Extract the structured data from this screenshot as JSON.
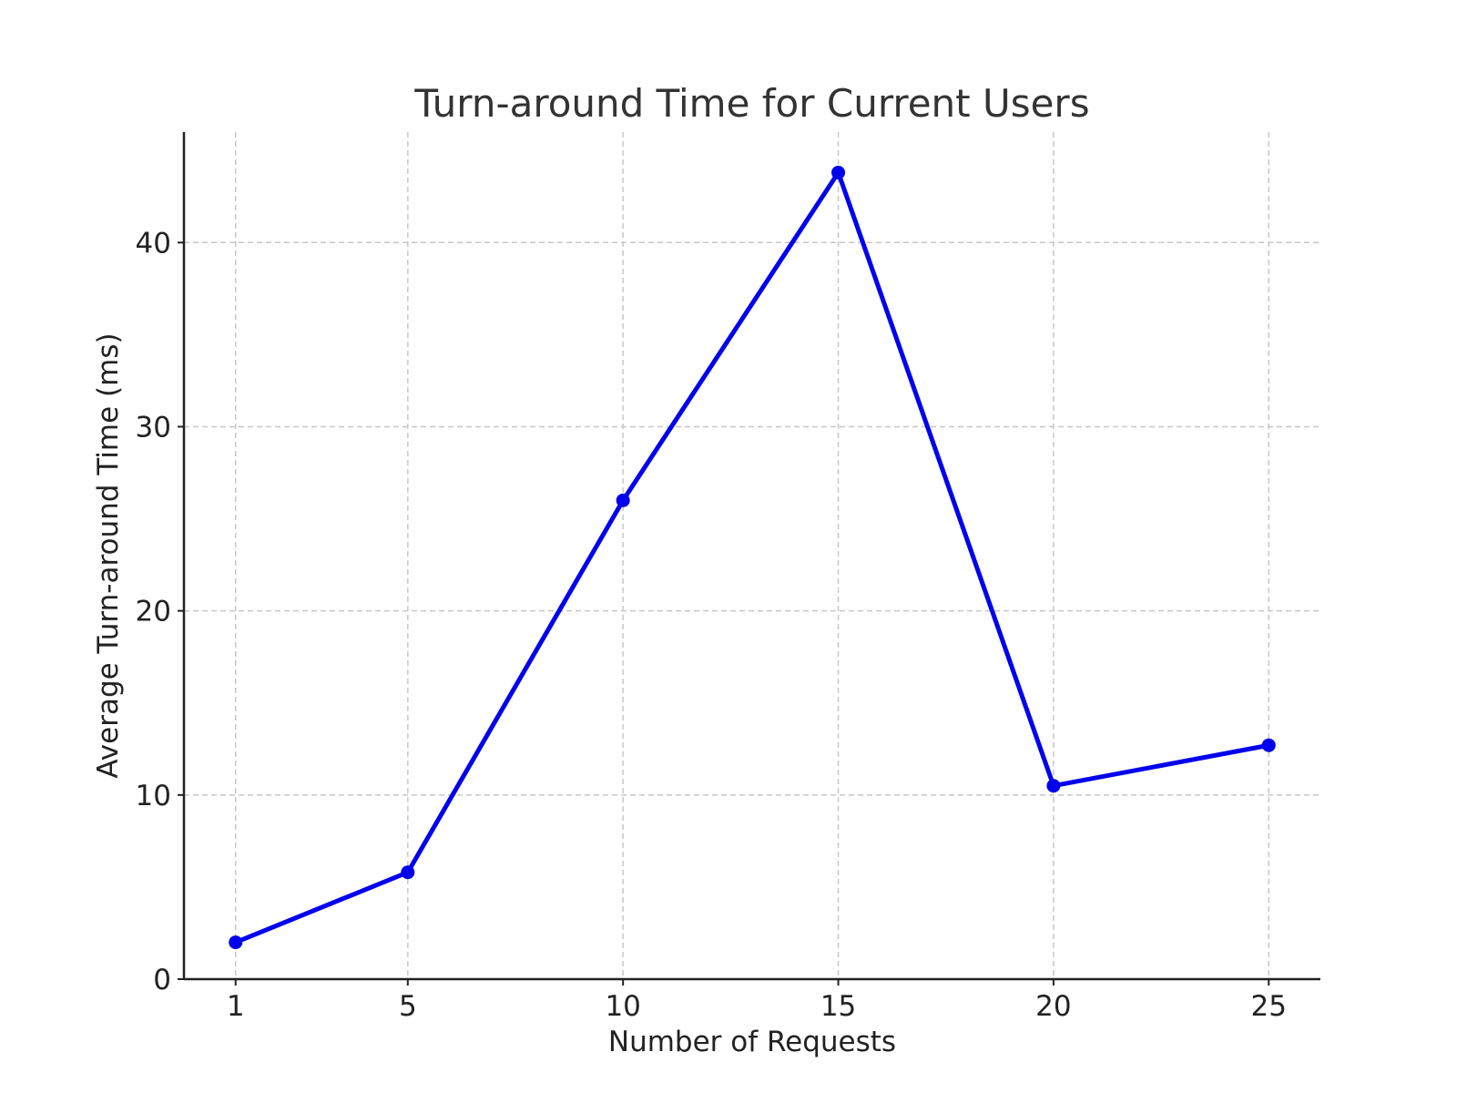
{
  "chart_data": {
    "type": "line",
    "title": "Turn-around Time for Current Users",
    "xlabel": "Number of Requests",
    "ylabel": "Average Turn-around Time (ms)",
    "x": [
      1,
      5,
      10,
      15,
      20,
      25
    ],
    "x_tick_labels": [
      "1",
      "5",
      "10",
      "15",
      "20",
      "25"
    ],
    "y_ticks": [
      0,
      10,
      20,
      30,
      40
    ],
    "y_tick_labels": [
      "0",
      "10",
      "20",
      "30",
      "40"
    ],
    "xlim": [
      -0.2,
      26.2
    ],
    "ylim": [
      0,
      46
    ],
    "grid": true,
    "series": [
      {
        "values": [
          2.0,
          5.8,
          26.0,
          43.8,
          10.5,
          12.7
        ],
        "color": "#0000ee",
        "marker": "circle"
      }
    ]
  }
}
